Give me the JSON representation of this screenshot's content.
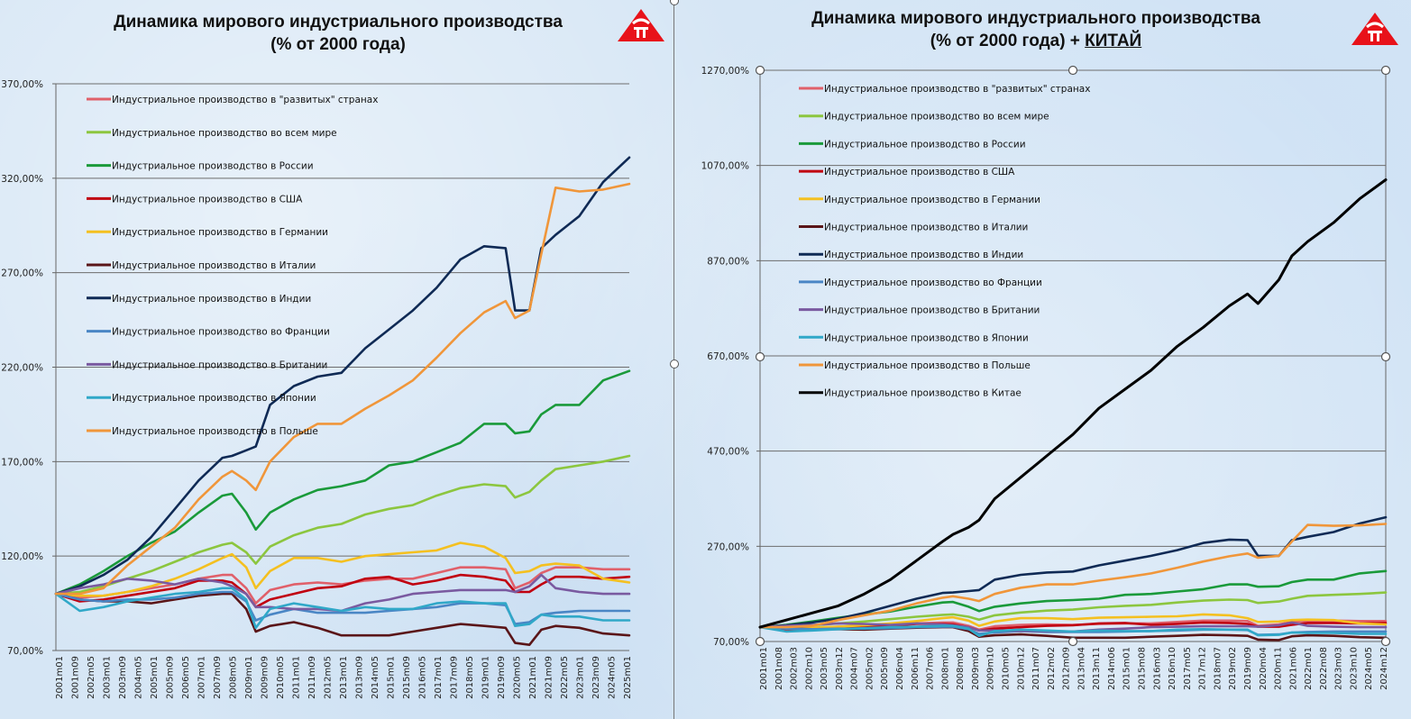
{
  "colors": {
    "developed": "#e0606a",
    "world": "#8cc63f",
    "russia": "#1a9a3a",
    "usa": "#c00010",
    "germany": "#f4c020",
    "italy": "#5a1518",
    "india": "#0f2a55",
    "france": "#4a86c5",
    "uk": "#7a5aa0",
    "japan": "#30a8c8",
    "poland": "#f0963a",
    "china": "#000000",
    "logo": "#e8121a"
  },
  "chart_data": [
    {
      "type": "line",
      "title": "Динамика мирового индустриального производства",
      "subtitle": "(% от 2000 года)",
      "ylim": [
        70,
        370
      ],
      "yticks": [
        "370,00%",
        "320,00%",
        "270,00%",
        "220,00%",
        "170,00%",
        "120,00%",
        "70,00%"
      ],
      "ytick_values": [
        370,
        320,
        270,
        220,
        170,
        120,
        70
      ],
      "grid": true,
      "legend_position": "top-left",
      "x_range": [
        "2001m01",
        "2025m02"
      ],
      "xticks": [
        "2001m01",
        "2001m09",
        "2002m05",
        "2003m01",
        "2003m09",
        "2004m05",
        "2005m01",
        "2005m09",
        "2006m05",
        "2007m01",
        "2007m09",
        "2008m05",
        "2009m01",
        "2009m09",
        "2010m05",
        "2011m01",
        "2011m09",
        "2012m05",
        "2013m01",
        "2013m09",
        "2014m05",
        "2015m01",
        "2015m09",
        "2016m05",
        "2017m01",
        "2017m09",
        "2018m05",
        "2019m01",
        "2019m09",
        "2020m05",
        "2021m01",
        "2021m09",
        "2022m05",
        "2023m01",
        "2023m09",
        "2024m05",
        "2025m01"
      ],
      "x": [
        2001.0,
        2002.0,
        2003.0,
        2004.0,
        2005.0,
        2006.0,
        2007.0,
        2008.0,
        2008.4,
        2009.0,
        2009.4,
        2010.0,
        2011.0,
        2012.0,
        2013.0,
        2014.0,
        2015.0,
        2016.0,
        2017.0,
        2018.0,
        2019.0,
        2019.9,
        2020.3,
        2020.9,
        2021.4,
        2022.0,
        2023.0,
        2024.0,
        2025.1
      ],
      "series": [
        {
          "key": "developed",
          "name": "Индустриальное производство в \"развитых\" странах",
          "values": [
            100,
            98,
            99,
            101,
            103,
            105,
            108,
            110,
            110,
            103,
            95,
            102,
            105,
            106,
            105,
            107,
            108,
            108,
            111,
            114,
            114,
            113,
            103,
            106,
            111,
            114,
            114,
            113,
            113
          ]
        },
        {
          "key": "world",
          "name": "Индустриальное производство во всем мире",
          "values": [
            100,
            101,
            104,
            108,
            112,
            117,
            122,
            126,
            127,
            122,
            116,
            125,
            131,
            135,
            137,
            142,
            145,
            147,
            152,
            156,
            158,
            157,
            151,
            154,
            160,
            166,
            168,
            170,
            173
          ]
        },
        {
          "key": "russia",
          "name": "Индустриальное производство в России",
          "values": [
            100,
            105,
            112,
            120,
            127,
            133,
            143,
            152,
            153,
            143,
            134,
            143,
            150,
            155,
            157,
            160,
            168,
            170,
            175,
            180,
            190,
            190,
            185,
            186,
            195,
            200,
            200,
            213,
            218
          ]
        },
        {
          "key": "usa",
          "name": "Индустриальное производство в США",
          "values": [
            100,
            96,
            97,
            99,
            101,
            103,
            107,
            107,
            106,
            100,
            93,
            97,
            100,
            103,
            104,
            108,
            109,
            105,
            107,
            110,
            109,
            107,
            101,
            101,
            105,
            109,
            109,
            108,
            109
          ]
        },
        {
          "key": "germany",
          "name": "Индустриальное производство в Германии",
          "values": [
            100,
            99,
            99,
            101,
            104,
            108,
            113,
            119,
            121,
            114,
            103,
            112,
            119,
            119,
            117,
            120,
            121,
            122,
            123,
            127,
            125,
            119,
            111,
            112,
            115,
            116,
            115,
            108,
            106
          ]
        },
        {
          "key": "italy",
          "name": "Индустриальное производство в Италии",
          "values": [
            100,
            97,
            96,
            96,
            95,
            97,
            99,
            100,
            100,
            92,
            80,
            83,
            85,
            82,
            78,
            78,
            78,
            80,
            82,
            84,
            83,
            82,
            74,
            73,
            81,
            83,
            82,
            79,
            78
          ]
        },
        {
          "key": "india",
          "name": "Индустриальное производство в Индии",
          "values": [
            100,
            104,
            110,
            118,
            130,
            145,
            160,
            172,
            173,
            176,
            178,
            200,
            210,
            215,
            217,
            230,
            240,
            250,
            262,
            277,
            284,
            283,
            250,
            250,
            283,
            290,
            300,
            318,
            331
          ]
        },
        {
          "key": "france",
          "name": "Индустриальное производство во Франции",
          "values": [
            100,
            97,
            96,
            97,
            97,
            98,
            100,
            101,
            101,
            96,
            86,
            89,
            92,
            90,
            90,
            90,
            91,
            92,
            93,
            95,
            95,
            94,
            84,
            85,
            89,
            90,
            91,
            91,
            91
          ]
        },
        {
          "key": "uk",
          "name": "Индустриальное производство в Британии",
          "values": [
            100,
            103,
            105,
            108,
            107,
            105,
            108,
            106,
            104,
            100,
            93,
            93,
            92,
            92,
            91,
            95,
            97,
            100,
            101,
            102,
            102,
            102,
            101,
            104,
            110,
            103,
            101,
            100,
            100
          ]
        },
        {
          "key": "japan",
          "name": "Индустриальное производство в Японии",
          "values": [
            100,
            91,
            93,
            96,
            98,
            100,
            101,
            103,
            103,
            97,
            82,
            92,
            95,
            93,
            91,
            93,
            92,
            92,
            95,
            96,
            95,
            95,
            83,
            84,
            89,
            88,
            88,
            86,
            86
          ]
        },
        {
          "key": "poland",
          "name": "Индустриальное производство в Польше",
          "values": [
            100,
            100,
            103,
            115,
            125,
            135,
            150,
            162,
            165,
            160,
            155,
            170,
            183,
            190,
            190,
            198,
            205,
            213,
            225,
            238,
            249,
            255,
            246,
            250,
            280,
            315,
            313,
            314,
            317
          ]
        }
      ]
    },
    {
      "type": "line",
      "title": "Динамика мирового индустриального производства",
      "subtitle_prefix": "(% от 2000 года) + ",
      "subtitle_emph": "КИТАЙ",
      "ylim": [
        70,
        1270
      ],
      "yticks": [
        "1270,00%",
        "1070,00%",
        "870,00%",
        "670,00%",
        "470,00%",
        "270,00%",
        "70,00%"
      ],
      "ytick_values": [
        1270,
        1070,
        870,
        670,
        470,
        270,
        70
      ],
      "grid": true,
      "legend_position": "top-left",
      "x_range": [
        "2001m01",
        "2025m01"
      ],
      "xticks": [
        "2001m01",
        "2001m08",
        "2002m03",
        "2002m10",
        "2003m05",
        "2003m12",
        "2004m07",
        "2005m02",
        "2005m09",
        "2006m04",
        "2006m11",
        "2007m06",
        "2008m01",
        "2008m08",
        "2009m03",
        "2009m10",
        "2010m05",
        "2010m12",
        "2011m07",
        "2012m02",
        "2012m09",
        "2013m04",
        "2013m11",
        "2014m06",
        "2015m01",
        "2015m08",
        "2016m03",
        "2016m10",
        "2017m05",
        "2017m12",
        "2018m07",
        "2019m02",
        "2019m09",
        "2020m04",
        "2020m11",
        "2021m06",
        "2022m01",
        "2022m08",
        "2023m03",
        "2023m10",
        "2024m05",
        "2024m12"
      ],
      "x": [
        2001.0,
        2002.0,
        2003.0,
        2004.0,
        2005.0,
        2006.0,
        2007.0,
        2008.0,
        2008.4,
        2009.0,
        2009.4,
        2010.0,
        2011.0,
        2012.0,
        2013.0,
        2014.0,
        2015.0,
        2016.0,
        2017.0,
        2018.0,
        2019.0,
        2019.7,
        2020.1,
        2020.9,
        2021.4,
        2022.0,
        2023.0,
        2024.0,
        2025.0
      ],
      "series": [
        {
          "key": "developed",
          "name": "Индустриальное производство в \"развитых\" странах",
          "values": [
            100,
            98,
            99,
            101,
            103,
            105,
            108,
            110,
            110,
            103,
            95,
            102,
            105,
            106,
            105,
            107,
            108,
            108,
            111,
            114,
            114,
            113,
            103,
            106,
            111,
            114,
            114,
            113,
            113
          ]
        },
        {
          "key": "world",
          "name": "Индустриальное производство во всем мире",
          "values": [
            100,
            101,
            104,
            108,
            112,
            117,
            122,
            126,
            127,
            122,
            116,
            125,
            131,
            135,
            137,
            142,
            145,
            147,
            152,
            156,
            158,
            157,
            151,
            154,
            160,
            166,
            168,
            170,
            173
          ]
        },
        {
          "key": "russia",
          "name": "Индустриальное производство в России",
          "values": [
            100,
            105,
            112,
            120,
            127,
            133,
            143,
            152,
            153,
            143,
            134,
            143,
            150,
            155,
            157,
            160,
            168,
            170,
            175,
            180,
            190,
            190,
            185,
            186,
            195,
            200,
            200,
            213,
            218
          ]
        },
        {
          "key": "usa",
          "name": "Индустриальное производство в США",
          "values": [
            100,
            96,
            97,
            99,
            101,
            103,
            107,
            107,
            106,
            100,
            93,
            97,
            100,
            103,
            104,
            108,
            109,
            105,
            107,
            110,
            109,
            107,
            101,
            101,
            105,
            109,
            109,
            108,
            109
          ]
        },
        {
          "key": "germany",
          "name": "Индустриальное производство в Германии",
          "values": [
            100,
            99,
            99,
            101,
            104,
            108,
            113,
            119,
            121,
            114,
            103,
            112,
            119,
            119,
            117,
            120,
            121,
            122,
            123,
            127,
            125,
            119,
            111,
            112,
            115,
            116,
            115,
            108,
            106
          ]
        },
        {
          "key": "italy",
          "name": "Индустриальное производство в Италии",
          "values": [
            100,
            97,
            96,
            96,
            95,
            97,
            99,
            100,
            100,
            92,
            80,
            83,
            85,
            82,
            78,
            78,
            78,
            80,
            82,
            84,
            83,
            82,
            74,
            73,
            81,
            83,
            82,
            79,
            78
          ]
        },
        {
          "key": "india",
          "name": "Индустриальное производство в Индии",
          "values": [
            100,
            104,
            110,
            118,
            130,
            145,
            160,
            172,
            173,
            176,
            178,
            200,
            210,
            215,
            217,
            230,
            240,
            250,
            262,
            277,
            284,
            283,
            250,
            250,
            283,
            290,
            300,
            318,
            331
          ]
        },
        {
          "key": "france",
          "name": "Индустриальное производство во Франции",
          "values": [
            100,
            97,
            96,
            97,
            97,
            98,
            100,
            101,
            101,
            96,
            86,
            89,
            92,
            90,
            90,
            90,
            91,
            92,
            93,
            95,
            95,
            94,
            84,
            85,
            89,
            90,
            91,
            91,
            91
          ]
        },
        {
          "key": "uk",
          "name": "Индустриальное производство в Британии",
          "values": [
            100,
            103,
            105,
            108,
            107,
            105,
            108,
            106,
            104,
            100,
            93,
            93,
            92,
            92,
            91,
            95,
            97,
            100,
            101,
            102,
            102,
            102,
            101,
            104,
            110,
            103,
            101,
            100,
            100
          ]
        },
        {
          "key": "japan",
          "name": "Индустриальное производство в Японии",
          "values": [
            100,
            91,
            93,
            96,
            98,
            100,
            101,
            103,
            103,
            97,
            82,
            92,
            95,
            93,
            91,
            93,
            92,
            92,
            95,
            96,
            95,
            95,
            83,
            84,
            89,
            88,
            88,
            86,
            86
          ]
        },
        {
          "key": "poland",
          "name": "Индустриальное производство в Польше",
          "values": [
            100,
            100,
            103,
            115,
            125,
            135,
            150,
            162,
            165,
            160,
            155,
            170,
            183,
            190,
            190,
            198,
            205,
            213,
            225,
            238,
            249,
            255,
            246,
            250,
            280,
            315,
            313,
            314,
            317
          ]
        },
        {
          "key": "china",
          "name": "Индустриальное производство в Китае",
          "values": [
            100,
            115,
            130,
            145,
            170,
            200,
            240,
            280,
            295,
            310,
            325,
            370,
            415,
            460,
            505,
            560,
            600,
            640,
            690,
            730,
            775,
            800,
            780,
            830,
            880,
            910,
            950,
            1000,
            1040
          ]
        }
      ]
    }
  ]
}
